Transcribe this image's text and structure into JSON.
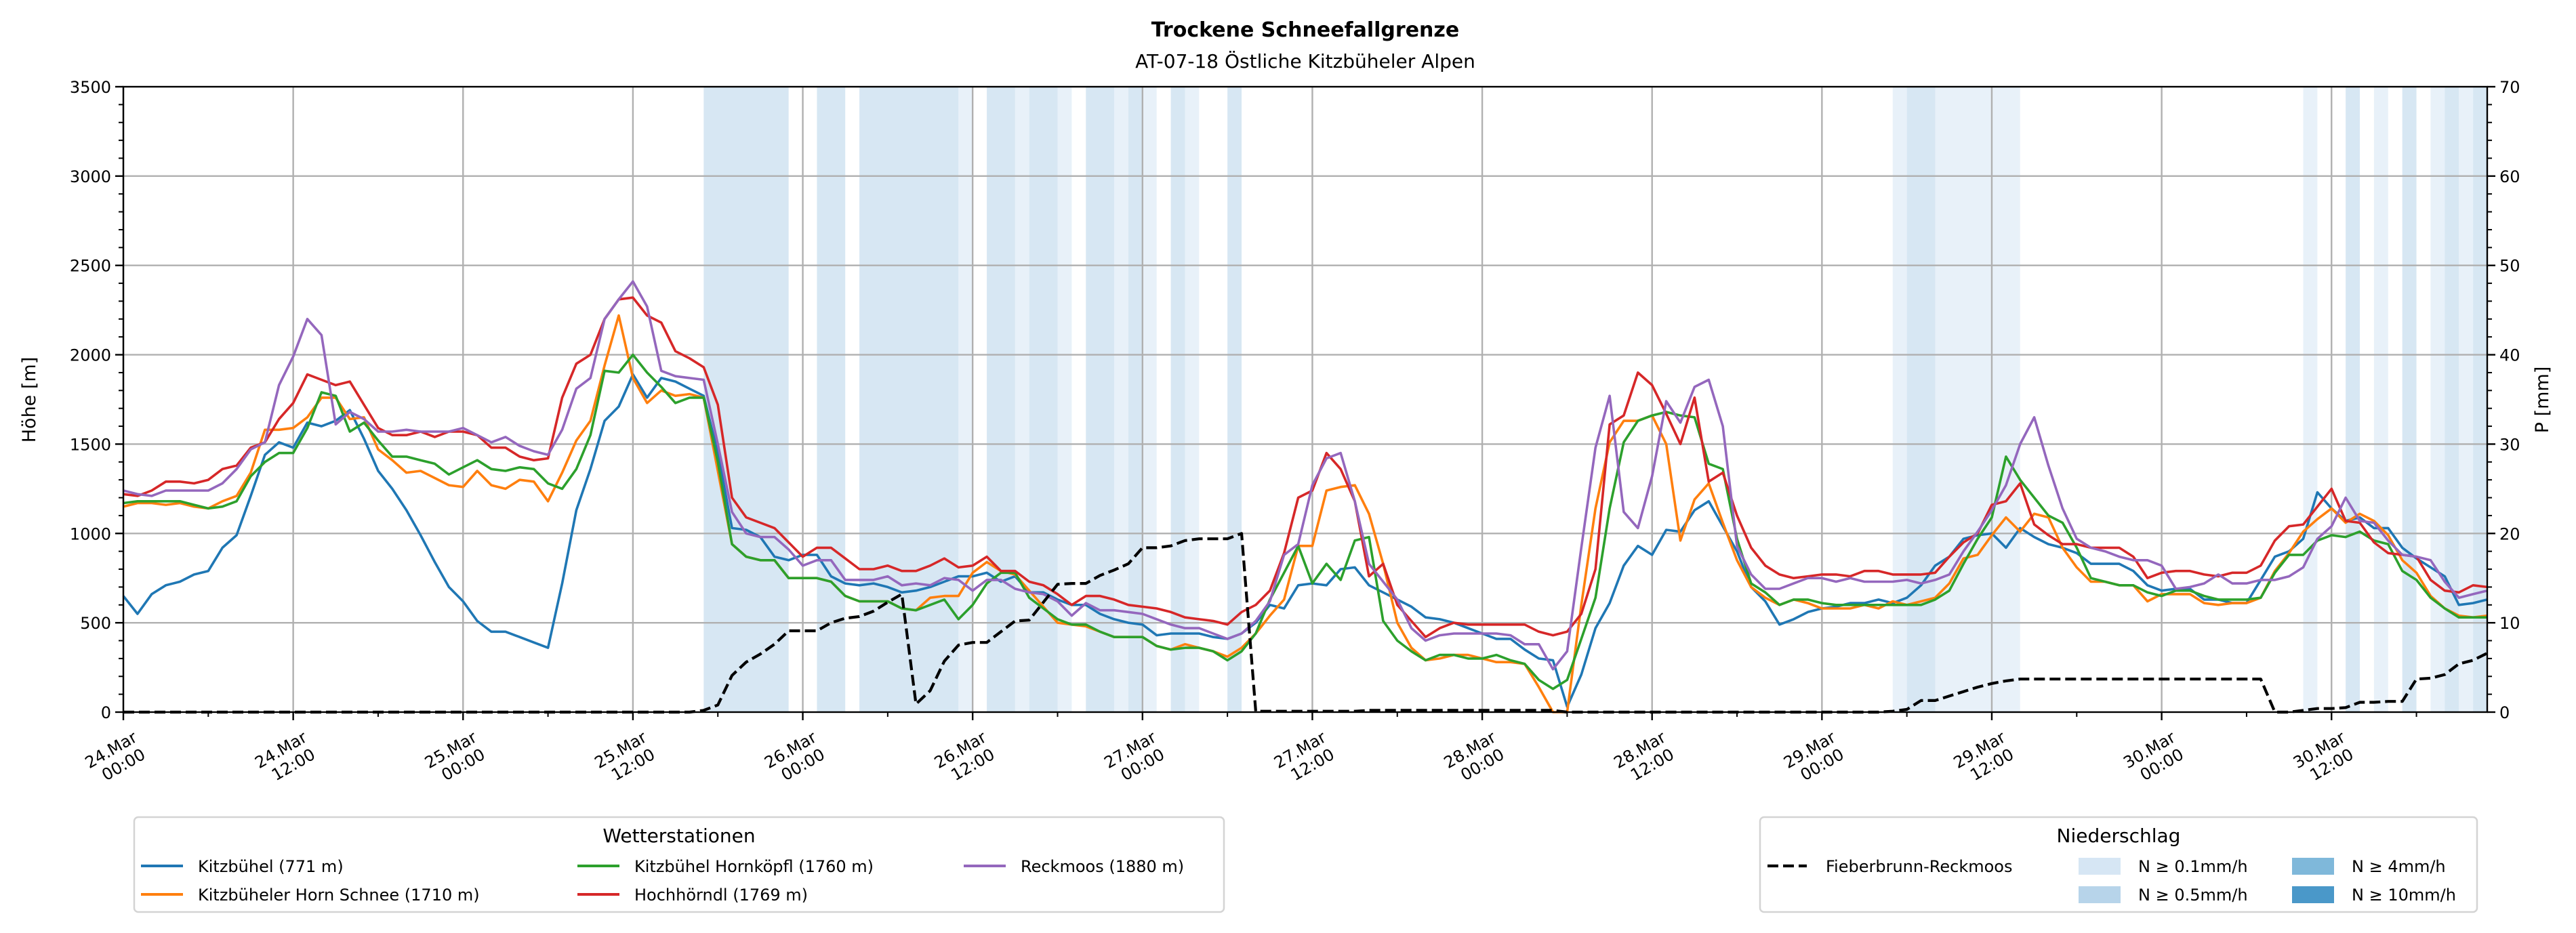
{
  "chart_data": {
    "type": "line",
    "title": "Trockene Schneefallgrenze",
    "subtitle": "AT-07-18 Östliche Kitzbüheler Alpen",
    "ylabel": "Höhe [m]",
    "ylabel_right": "P [mm]",
    "ylim": [
      0,
      3500
    ],
    "ylim_right": [
      0,
      70
    ],
    "y_ticks": [
      "0",
      "500",
      "1000",
      "1500",
      "2000",
      "2500",
      "3000",
      "3500"
    ],
    "y_ticks_right": [
      "0",
      "10",
      "20",
      "30",
      "40",
      "50",
      "60",
      "70"
    ],
    "x_unit": "hours since 24.Mar 00:00, hourly values",
    "xlim_hours": [
      0,
      167
    ],
    "x_ticks": {
      "hours": [
        0,
        12,
        24,
        36,
        48,
        60,
        72,
        84,
        96,
        108,
        120,
        132,
        144,
        156
      ],
      "labels": [
        [
          "24.Mar",
          "00:00"
        ],
        [
          "24.Mar",
          "12:00"
        ],
        [
          "25.Mar",
          "00:00"
        ],
        [
          "25.Mar",
          "12:00"
        ],
        [
          "26.Mar",
          "00:00"
        ],
        [
          "26.Mar",
          "12:00"
        ],
        [
          "27.Mar",
          "00:00"
        ],
        [
          "27.Mar",
          "12:00"
        ],
        [
          "28.Mar",
          "00:00"
        ],
        [
          "28.Mar",
          "12:00"
        ],
        [
          "29.Mar",
          "00:00"
        ],
        [
          "29.Mar",
          "12:00"
        ],
        [
          "30.Mar",
          "00:00"
        ],
        [
          "30.Mar",
          "12:00"
        ]
      ]
    },
    "grid": true,
    "series": [
      {
        "name": "Kitzbühel (771 m)",
        "color": "#1f77b4",
        "axis": "left",
        "values": [
          650,
          550,
          660,
          710,
          730,
          770,
          790,
          920,
          990,
          1210,
          1440,
          1510,
          1480,
          1620,
          1600,
          1630,
          1690,
          1530,
          1350,
          1250,
          1130,
          990,
          840,
          700,
          620,
          510,
          450,
          450,
          420,
          390,
          360,
          720,
          1130,
          1360,
          1630,
          1710,
          1890,
          1760,
          1870,
          1850,
          1810,
          1770,
          1450,
          1030,
          1020,
          980,
          870,
          850,
          880,
          880,
          760,
          720,
          710,
          720,
          700,
          670,
          680,
          700,
          730,
          760,
          760,
          780,
          730,
          760,
          670,
          670,
          630,
          600,
          600,
          550,
          520,
          500,
          490,
          430,
          440,
          440,
          440,
          420,
          410,
          440,
          500,
          600,
          580,
          710,
          720,
          710,
          800,
          810,
          710,
          670,
          630,
          590,
          530,
          520,
          500,
          470,
          440,
          410,
          410,
          350,
          300,
          290,
          30,
          210,
          470,
          610,
          820,
          930,
          880,
          1020,
          1010,
          1130,
          1180,
          1040,
          900,
          700,
          620,
          490,
          520,
          560,
          580,
          590,
          610,
          610,
          630,
          610,
          640,
          710,
          820,
          870,
          970,
          990,
          1000,
          920,
          1030,
          980,
          940,
          920,
          890,
          830,
          830,
          830,
          790,
          710,
          680,
          690,
          690,
          630,
          630,
          610,
          610,
          740,
          870,
          900,
          970,
          1230,
          1140,
          1070,
          1090,
          1030,
          1030,
          920,
          860,
          810,
          760,
          600,
          610,
          630
        ]
      },
      {
        "name": "Kitzbüheler Horn Schnee (1710 m)",
        "color": "#ff7f0e",
        "axis": "left",
        "values": [
          1150,
          1170,
          1170,
          1160,
          1170,
          1150,
          1140,
          1180,
          1210,
          1340,
          1580,
          1580,
          1590,
          1650,
          1760,
          1760,
          1640,
          1650,
          1470,
          1410,
          1340,
          1350,
          1310,
          1270,
          1260,
          1350,
          1270,
          1250,
          1300,
          1290,
          1180,
          1340,
          1520,
          1630,
          1940,
          2220,
          1870,
          1730,
          1800,
          1770,
          1780,
          1760,
          1350,
          940,
          870,
          850,
          850,
          750,
          750,
          750,
          730,
          650,
          620,
          620,
          620,
          580,
          570,
          640,
          650,
          650,
          780,
          840,
          790,
          770,
          680,
          590,
          500,
          490,
          480,
          450,
          420,
          420,
          420,
          370,
          350,
          380,
          360,
          340,
          310,
          360,
          440,
          540,
          630,
          930,
          930,
          1240,
          1260,
          1270,
          1110,
          830,
          500,
          360,
          290,
          300,
          320,
          320,
          300,
          280,
          280,
          270,
          140,
          0,
          0,
          600,
          1140,
          1510,
          1630,
          1630,
          1660,
          1500,
          960,
          1190,
          1280,
          1060,
          850,
          700,
          640,
          600,
          630,
          610,
          580,
          580,
          580,
          600,
          580,
          620,
          600,
          620,
          640,
          720,
          860,
          880,
          990,
          1090,
          1010,
          1110,
          1090,
          920,
          810,
          730,
          730,
          710,
          710,
          620,
          660,
          660,
          660,
          610,
          600,
          610,
          610,
          640,
          790,
          890,
          1010,
          1080,
          1140,
          1060,
          1110,
          1070,
          990,
          850,
          780,
          650,
          580,
          540,
          530,
          540
        ]
      },
      {
        "name": "Kitzbühel Hornköpfl (1760 m)",
        "color": "#2ca02c",
        "axis": "left",
        "values": [
          1170,
          1180,
          1180,
          1180,
          1180,
          1160,
          1140,
          1150,
          1180,
          1320,
          1400,
          1450,
          1450,
          1590,
          1790,
          1770,
          1570,
          1620,
          1520,
          1430,
          1430,
          1410,
          1390,
          1330,
          1370,
          1410,
          1360,
          1350,
          1370,
          1360,
          1280,
          1250,
          1360,
          1550,
          1910,
          1900,
          2000,
          1900,
          1820,
          1730,
          1760,
          1760,
          1400,
          940,
          870,
          850,
          850,
          750,
          750,
          750,
          730,
          650,
          620,
          620,
          620,
          580,
          570,
          600,
          630,
          520,
          600,
          720,
          780,
          780,
          640,
          580,
          520,
          490,
          490,
          450,
          420,
          420,
          420,
          370,
          350,
          360,
          360,
          340,
          290,
          340,
          440,
          630,
          780,
          930,
          720,
          830,
          740,
          960,
          980,
          510,
          400,
          340,
          290,
          320,
          320,
          300,
          300,
          320,
          290,
          270,
          180,
          130,
          180,
          410,
          640,
          1140,
          1510,
          1630,
          1660,
          1680,
          1660,
          1650,
          1390,
          1360,
          970,
          720,
          670,
          600,
          630,
          630,
          610,
          600,
          600,
          600,
          600,
          600,
          600,
          600,
          630,
          680,
          830,
          970,
          1090,
          1430,
          1300,
          1200,
          1100,
          1060,
          920,
          750,
          730,
          710,
          710,
          670,
          650,
          680,
          680,
          650,
          630,
          630,
          630,
          640,
          780,
          880,
          880,
          960,
          990,
          980,
          1010,
          960,
          940,
          790,
          740,
          640,
          580,
          530,
          530,
          530
        ]
      },
      {
        "name": "Hochhörndl (1769 m)",
        "color": "#d62728",
        "axis": "left",
        "values": [
          1220,
          1210,
          1240,
          1290,
          1290,
          1280,
          1300,
          1360,
          1380,
          1480,
          1510,
          1640,
          1730,
          1890,
          1860,
          1830,
          1850,
          1720,
          1590,
          1550,
          1550,
          1570,
          1540,
          1570,
          1570,
          1550,
          1480,
          1480,
          1430,
          1410,
          1420,
          1760,
          1950,
          2000,
          2200,
          2310,
          2320,
          2220,
          2180,
          2020,
          1980,
          1930,
          1720,
          1200,
          1090,
          1060,
          1030,
          950,
          870,
          920,
          920,
          860,
          800,
          800,
          820,
          790,
          790,
          820,
          860,
          810,
          820,
          870,
          790,
          790,
          730,
          710,
          660,
          600,
          650,
          650,
          630,
          600,
          590,
          580,
          560,
          530,
          520,
          510,
          490,
          560,
          600,
          680,
          890,
          1200,
          1240,
          1450,
          1360,
          1180,
          760,
          830,
          600,
          510,
          420,
          470,
          500,
          490,
          490,
          490,
          490,
          490,
          450,
          430,
          450,
          550,
          800,
          1610,
          1660,
          1900,
          1830,
          1670,
          1500,
          1760,
          1290,
          1340,
          1100,
          920,
          820,
          770,
          750,
          760,
          770,
          770,
          760,
          790,
          790,
          770,
          770,
          770,
          780,
          870,
          950,
          1000,
          1160,
          1180,
          1280,
          1050,
          990,
          940,
          940,
          920,
          920,
          920,
          870,
          750,
          780,
          790,
          790,
          770,
          760,
          780,
          780,
          820,
          960,
          1040,
          1050,
          1150,
          1250,
          1070,
          1060,
          950,
          890,
          880,
          870,
          740,
          680,
          670,
          710,
          700
        ]
      },
      {
        "name": "Reckmoos (1880 m)",
        "color": "#9467bd",
        "axis": "left",
        "values": [
          1240,
          1220,
          1210,
          1240,
          1240,
          1240,
          1240,
          1280,
          1360,
          1470,
          1510,
          1830,
          1990,
          2200,
          2110,
          1610,
          1680,
          1640,
          1570,
          1570,
          1580,
          1570,
          1570,
          1570,
          1590,
          1550,
          1510,
          1540,
          1490,
          1460,
          1440,
          1580,
          1810,
          1870,
          2200,
          2310,
          2410,
          2270,
          1910,
          1880,
          1870,
          1860,
          1500,
          1120,
          1000,
          980,
          980,
          910,
          820,
          850,
          850,
          740,
          740,
          740,
          760,
          710,
          720,
          710,
          750,
          740,
          680,
          740,
          740,
          690,
          670,
          660,
          620,
          540,
          610,
          570,
          570,
          560,
          550,
          520,
          490,
          470,
          470,
          440,
          410,
          440,
          510,
          620,
          880,
          940,
          1270,
          1420,
          1450,
          1180,
          830,
          730,
          630,
          470,
          400,
          430,
          440,
          440,
          440,
          440,
          430,
          380,
          380,
          240,
          340,
          920,
          1480,
          1770,
          1120,
          1030,
          1320,
          1740,
          1620,
          1820,
          1860,
          1600,
          930,
          770,
          690,
          690,
          720,
          750,
          750,
          730,
          750,
          730,
          730,
          730,
          740,
          720,
          740,
          770,
          900,
          1010,
          1130,
          1270,
          1500,
          1650,
          1380,
          1140,
          970,
          920,
          900,
          870,
          850,
          850,
          820,
          690,
          700,
          720,
          770,
          720,
          720,
          740,
          740,
          760,
          810,
          970,
          1040,
          1200,
          1070,
          1060,
          960,
          880,
          870,
          850,
          730,
          640,
          660,
          680
        ]
      },
      {
        "name": "Fieberbrunn-Reckmoos",
        "color": "#000000",
        "axis": "right",
        "style": "dashed",
        "values": [
          0,
          0,
          0,
          0,
          0,
          0,
          0,
          0,
          0,
          0,
          0,
          0,
          0,
          0,
          0,
          0,
          0,
          0,
          0,
          0,
          0,
          0,
          0,
          0,
          0,
          0,
          0,
          0,
          0,
          0,
          0,
          0,
          0,
          0,
          0,
          0,
          0,
          0,
          0,
          0,
          0,
          0.2,
          0.8,
          4.1,
          5.6,
          6.5,
          7.6,
          9.1,
          9.1,
          9.1,
          10.0,
          10.5,
          10.7,
          11.3,
          12.3,
          13.2,
          0.9,
          2.4,
          5.7,
          7.5,
          7.8,
          7.8,
          9.0,
          10.2,
          10.3,
          12.3,
          14.3,
          14.4,
          14.4,
          15.3,
          15.9,
          16.6,
          18.4,
          18.4,
          18.6,
          19.2,
          19.4,
          19.4,
          19.4,
          20.0,
          0.1,
          0.1,
          0.1,
          0.1,
          0.1,
          0.1,
          0.1,
          0.1,
          0.2,
          0.2,
          0.2,
          0.2,
          0.2,
          0.2,
          0.2,
          0.2,
          0.2,
          0.2,
          0.2,
          0.2,
          0.2,
          0.2,
          0,
          0,
          0,
          0,
          0,
          0,
          0,
          0,
          0,
          0,
          0,
          0,
          0,
          0,
          0,
          0,
          0,
          0,
          0,
          0,
          0,
          0,
          0,
          0.1,
          0.3,
          1.3,
          1.3,
          1.8,
          2.3,
          2.8,
          3.2,
          3.5,
          3.7,
          3.7,
          3.7,
          3.7,
          3.7,
          3.7,
          3.7,
          3.7,
          3.7,
          3.7,
          3.7,
          3.7,
          3.7,
          3.7,
          3.7,
          3.7,
          3.7,
          3.7,
          0,
          0,
          0.2,
          0.4,
          0.4,
          0.5,
          1.1,
          1.1,
          1.2,
          1.2,
          3.7,
          3.8,
          4.2,
          5.4,
          5.8,
          6.6
        ]
      }
    ],
    "precip_classes": [
      {
        "label": "N ≥ 0.1mm/h",
        "color": "#d6e6f4"
      },
      {
        "label": "N ≥ 0.5mm/h",
        "color": "#b7d4ea"
      },
      {
        "label": "N ≥ 4mm/h",
        "color": "#7fb8da"
      },
      {
        "label": "N ≥ 10mm/h",
        "color": "#4a98c9"
      }
    ],
    "precip_intervals_hours": [
      [
        41,
        47,
        1
      ],
      [
        49,
        51,
        1
      ],
      [
        52,
        59,
        1
      ],
      [
        59,
        60,
        0
      ],
      [
        61,
        63,
        1
      ],
      [
        63,
        64,
        0
      ],
      [
        64,
        66,
        1
      ],
      [
        66,
        67,
        0
      ],
      [
        68,
        70,
        1
      ],
      [
        70,
        71,
        0
      ],
      [
        71,
        72,
        1
      ],
      [
        72,
        73,
        0
      ],
      [
        74,
        75,
        1
      ],
      [
        75,
        76,
        0
      ],
      [
        78,
        79,
        1
      ],
      [
        125,
        126,
        0
      ],
      [
        126,
        128,
        1
      ],
      [
        128,
        134,
        0
      ],
      [
        154,
        155,
        0
      ],
      [
        157,
        158,
        1
      ],
      [
        159,
        160,
        0
      ],
      [
        161,
        162,
        1
      ],
      [
        163,
        164,
        0
      ],
      [
        164,
        165,
        1
      ],
      [
        165,
        166,
        0
      ],
      [
        166,
        167,
        1
      ]
    ],
    "legend_stations": {
      "title": "Wetterstationen",
      "placement": "bottom-left"
    },
    "legend_precip": {
      "title": "Niederschlag",
      "placement": "bottom-right"
    }
  }
}
